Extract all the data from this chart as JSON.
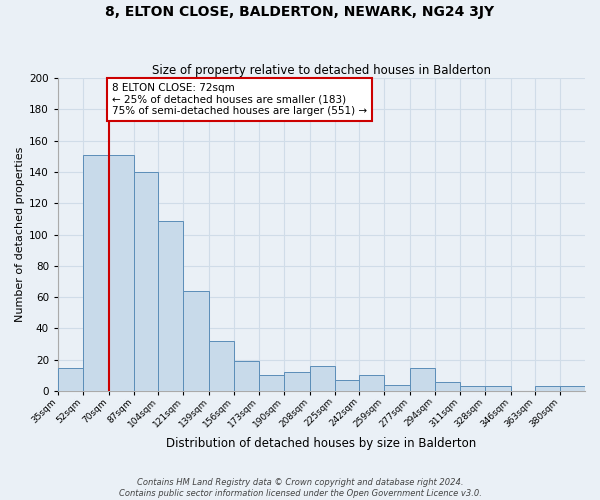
{
  "title": "8, ELTON CLOSE, BALDERTON, NEWARK, NG24 3JY",
  "subtitle": "Size of property relative to detached houses in Balderton",
  "xlabel": "Distribution of detached houses by size in Balderton",
  "ylabel": "Number of detached properties",
  "bar_labels": [
    "35sqm",
    "52sqm",
    "70sqm",
    "87sqm",
    "104sqm",
    "121sqm",
    "139sqm",
    "156sqm",
    "173sqm",
    "190sqm",
    "208sqm",
    "225sqm",
    "242sqm",
    "259sqm",
    "277sqm",
    "294sqm",
    "311sqm",
    "328sqm",
    "346sqm",
    "363sqm",
    "380sqm"
  ],
  "bar_values": [
    15,
    151,
    151,
    140,
    109,
    64,
    32,
    19,
    10,
    12,
    16,
    7,
    10,
    4,
    15,
    6,
    3,
    3,
    0,
    3,
    3
  ],
  "tick_vals": [
    35,
    52,
    70,
    87,
    104,
    121,
    139,
    156,
    173,
    190,
    208,
    225,
    242,
    259,
    277,
    294,
    311,
    328,
    346,
    363,
    380
  ],
  "red_line_x": 70,
  "bar_color": "#c8daea",
  "bar_edge_color": "#5b8db8",
  "red_line_color": "#cc0000",
  "annotation_line1": "8 ELTON CLOSE: 72sqm",
  "annotation_line2": "← 25% of detached houses are smaller (183)",
  "annotation_line3": "75% of semi-detached houses are larger (551) →",
  "annotation_box_color": "#ffffff",
  "annotation_box_edge": "#cc0000",
  "ylim": [
    0,
    200
  ],
  "yticks": [
    0,
    20,
    40,
    60,
    80,
    100,
    120,
    140,
    160,
    180,
    200
  ],
  "footer1": "Contains HM Land Registry data © Crown copyright and database right 2024.",
  "footer2": "Contains public sector information licensed under the Open Government Licence v3.0.",
  "bg_color": "#eaf0f6",
  "grid_color": "#d0dce8"
}
